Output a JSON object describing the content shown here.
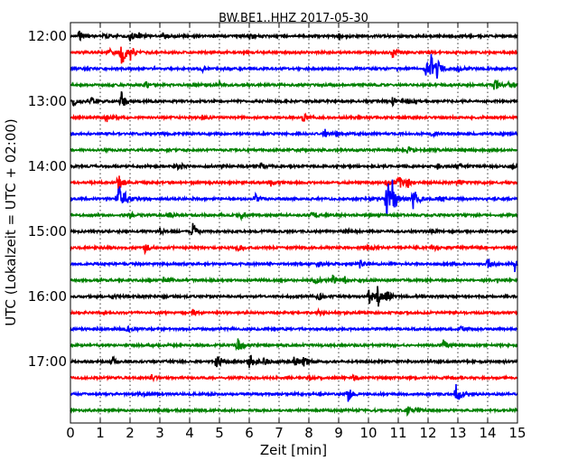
{
  "chart_data": {
    "type": "line",
    "title": "BW.BE1..HHZ 2017-05-30",
    "xlabel": "Zeit  [min]",
    "ylabel": "UTC (Lokalzeit = UTC + 02:00)",
    "xlim": [
      0,
      15
    ],
    "x_ticks": [
      "0",
      "1",
      "2",
      "3",
      "4",
      "5",
      "6",
      "7",
      "8",
      "9",
      "10",
      "11",
      "12",
      "13",
      "14",
      "15"
    ],
    "y_ticks": [
      "12:00",
      "13:00",
      "14:00",
      "15:00",
      "16:00",
      "17:00"
    ],
    "grid": "dotted vertical lines at each minute",
    "colors": [
      "#000000",
      "#ff0000",
      "#0000ff",
      "#008000"
    ],
    "traces": [
      {
        "start": "12:00",
        "events": [
          [
            0.3,
            6
          ],
          [
            1.1,
            4
          ],
          [
            2.0,
            5
          ],
          [
            2.3,
            4
          ],
          [
            3.1,
            3
          ],
          [
            6.0,
            5
          ],
          [
            9.0,
            4
          ]
        ]
      },
      {
        "start": "12:15",
        "events": [
          [
            1.3,
            4
          ],
          [
            1.7,
            18
          ],
          [
            2.0,
            8
          ],
          [
            10.8,
            6
          ]
        ]
      },
      {
        "start": "12:30",
        "events": [
          [
            4.4,
            3
          ],
          [
            11.9,
            9
          ],
          [
            12.1,
            16
          ],
          [
            12.3,
            7
          ],
          [
            13.0,
            4
          ]
        ]
      },
      {
        "start": "12:45",
        "events": [
          [
            2.5,
            4
          ],
          [
            5.0,
            3
          ],
          [
            14.2,
            9
          ],
          [
            14.7,
            6
          ]
        ]
      },
      {
        "start": "13:00",
        "events": [
          [
            0.1,
            5
          ],
          [
            0.7,
            4
          ],
          [
            1.7,
            12
          ],
          [
            10.8,
            5
          ],
          [
            11.3,
            3
          ]
        ]
      },
      {
        "start": "13:15",
        "events": [
          [
            1.2,
            5
          ],
          [
            4.4,
            3
          ],
          [
            7.8,
            5
          ]
        ]
      },
      {
        "start": "13:30",
        "events": [
          [
            8.5,
            7
          ],
          [
            8.9,
            4
          ],
          [
            12.1,
            3
          ]
        ]
      },
      {
        "start": "13:45",
        "events": [
          [
            11.3,
            4
          ],
          [
            12.1,
            3
          ]
        ]
      },
      {
        "start": "14:00",
        "events": [
          [
            3.6,
            5
          ],
          [
            6.4,
            4
          ],
          [
            12.3,
            3
          ],
          [
            13.0,
            3
          ],
          [
            14.8,
            3
          ]
        ]
      },
      {
        "start": "14:15",
        "events": [
          [
            1.6,
            10
          ],
          [
            6.7,
            5
          ],
          [
            10.6,
            7
          ],
          [
            11.0,
            10
          ],
          [
            11.3,
            6
          ],
          [
            13.0,
            4
          ]
        ]
      },
      {
        "start": "14:30",
        "events": [
          [
            1.6,
            22
          ],
          [
            1.8,
            10
          ],
          [
            6.2,
            5
          ],
          [
            10.6,
            30
          ],
          [
            10.8,
            15
          ],
          [
            11.5,
            14
          ],
          [
            12.3,
            5
          ]
        ]
      },
      {
        "start": "14:45",
        "events": [
          [
            2.0,
            3
          ],
          [
            3.3,
            3
          ],
          [
            5.7,
            4
          ],
          [
            8.1,
            4
          ]
        ]
      },
      {
        "start": "15:00",
        "events": [
          [
            3.0,
            3
          ],
          [
            4.1,
            10
          ],
          [
            9.2,
            4
          ],
          [
            12.1,
            3
          ]
        ]
      },
      {
        "start": "15:15",
        "events": [
          [
            2.5,
            5
          ],
          [
            5.6,
            4
          ],
          [
            10.0,
            4
          ],
          [
            12.1,
            4
          ]
        ]
      },
      {
        "start": "15:30",
        "events": [
          [
            8.3,
            3
          ],
          [
            9.7,
            5
          ],
          [
            14.0,
            7
          ],
          [
            14.9,
            9
          ]
        ]
      },
      {
        "start": "15:45",
        "events": [
          [
            3.1,
            3
          ],
          [
            8.2,
            5
          ],
          [
            8.8,
            5
          ],
          [
            9.2,
            4
          ]
        ]
      },
      {
        "start": "16:00",
        "events": [
          [
            1.4,
            3
          ],
          [
            8.3,
            4
          ],
          [
            10.0,
            10
          ],
          [
            10.3,
            13
          ],
          [
            10.6,
            7
          ]
        ]
      },
      {
        "start": "16:15",
        "events": [
          [
            4.1,
            3
          ],
          [
            8.3,
            3
          ]
        ]
      },
      {
        "start": "16:30",
        "events": [
          [
            1.9,
            3
          ],
          [
            13.1,
            4
          ]
        ]
      },
      {
        "start": "16:45",
        "events": [
          [
            5.6,
            12
          ],
          [
            12.5,
            6
          ]
        ]
      },
      {
        "start": "17:00",
        "events": [
          [
            1.4,
            6
          ],
          [
            4.9,
            12
          ],
          [
            6.0,
            9
          ],
          [
            6.5,
            4
          ],
          [
            7.5,
            7
          ],
          [
            7.8,
            8
          ]
        ]
      },
      {
        "start": "17:15",
        "events": [
          [
            2.7,
            4
          ],
          [
            8.0,
            3
          ],
          [
            9.5,
            3
          ]
        ]
      },
      {
        "start": "17:30",
        "events": [
          [
            2.3,
            3
          ],
          [
            9.3,
            9
          ],
          [
            12.9,
            15
          ]
        ]
      },
      {
        "start": "17:45",
        "events": [
          [
            11.3,
            5
          ],
          [
            11.6,
            4
          ]
        ]
      }
    ]
  }
}
